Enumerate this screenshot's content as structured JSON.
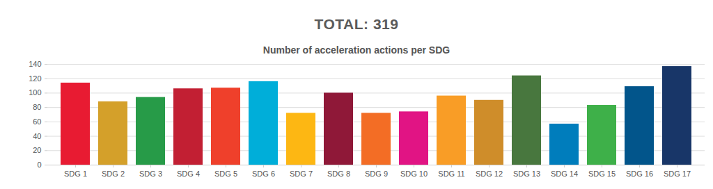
{
  "chart_data": {
    "type": "bar",
    "title": "TOTAL: 319",
    "subtitle": "Number of acceleration actions per SDG",
    "categories": [
      "SDG 1",
      "SDG 2",
      "SDG 3",
      "SDG 4",
      "SDG 5",
      "SDG 6",
      "SDG 7",
      "SDG 8",
      "SDG 9",
      "SDG 10",
      "SDG 11",
      "SDG 12",
      "SDG 13",
      "SDG 14",
      "SDG 15",
      "SDG 16",
      "SDG 17"
    ],
    "values": [
      114,
      88,
      94,
      106,
      107,
      116,
      72,
      100,
      72,
      74,
      96,
      90,
      124,
      57,
      83,
      109,
      137
    ],
    "colors": [
      "#e81b32",
      "#d4a02a",
      "#279b48",
      "#c21f33",
      "#ef402b",
      "#00aed9",
      "#fdb713",
      "#8f1838",
      "#f36d25",
      "#e11484",
      "#f99d26",
      "#cf8d2a",
      "#48773e",
      "#007dbc",
      "#3eb049",
      "#02558b",
      "#183668"
    ],
    "ylim": [
      0,
      140
    ],
    "yticks": [
      0,
      20,
      40,
      60,
      80,
      100,
      120,
      140
    ],
    "grid": true
  }
}
